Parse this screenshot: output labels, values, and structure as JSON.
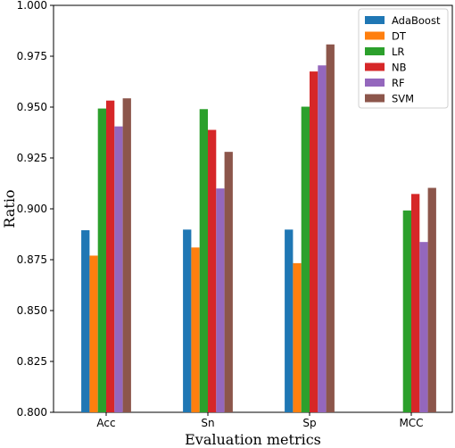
{
  "chart_data": {
    "type": "bar",
    "categories": [
      "Acc",
      "Sn",
      "Sp",
      "MCC"
    ],
    "series": [
      {
        "name": "AdaBoost",
        "color": "#1f77b4",
        "values": [
          0.8895,
          0.8898,
          0.8898,
          null
        ]
      },
      {
        "name": "DT",
        "color": "#ff7f0e",
        "values": [
          0.877,
          0.881,
          0.8733,
          null
        ]
      },
      {
        "name": "LR",
        "color": "#2ca02c",
        "values": [
          0.9493,
          0.949,
          0.9502,
          0.8992
        ]
      },
      {
        "name": "NB",
        "color": "#d62728",
        "values": [
          0.9532,
          0.9388,
          0.9675,
          0.9073
        ]
      },
      {
        "name": "RF",
        "color": "#9467bd",
        "values": [
          0.9405,
          0.91,
          0.9705,
          0.8837
        ]
      },
      {
        "name": "SVM",
        "color": "#8c564b",
        "values": [
          0.9543,
          0.928,
          0.9808,
          0.9103
        ]
      }
    ],
    "xlabel": "Evaluation metrics",
    "ylabel": "Ratio",
    "ylim": [
      0.8,
      1.0
    ],
    "yticks": [
      "0.800",
      "0.825",
      "0.850",
      "0.875",
      "0.900",
      "0.925",
      "0.950",
      "0.975",
      "1.000"
    ],
    "grid": false,
    "legend_position": "top-right"
  }
}
